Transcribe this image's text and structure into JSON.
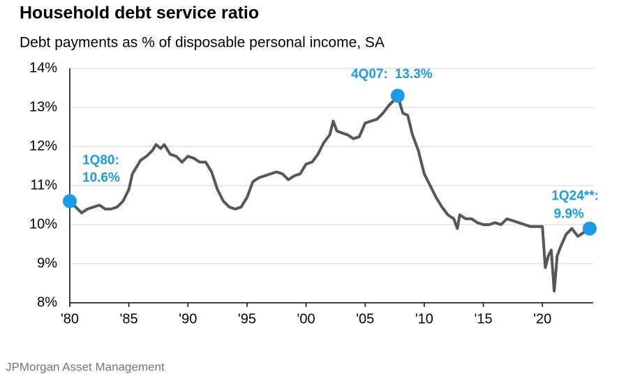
{
  "chart_data": {
    "type": "line",
    "title": "Household debt service ratio",
    "subtitle": "Debt payments as % of disposable personal income, SA",
    "source": "JPMorgan Asset Management",
    "x": [
      1980.0,
      1980.5,
      1981.0,
      1981.5,
      1982.0,
      1982.5,
      1983.0,
      1983.5,
      1984.0,
      1984.5,
      1985.0,
      1985.3,
      1985.7,
      1986.0,
      1986.5,
      1987.0,
      1987.3,
      1987.7,
      1988.0,
      1988.5,
      1989.0,
      1989.5,
      1990.0,
      1990.5,
      1991.0,
      1991.5,
      1992.0,
      1992.5,
      1993.0,
      1993.5,
      1994.0,
      1994.5,
      1995.0,
      1995.5,
      1996.0,
      1996.5,
      1997.0,
      1997.5,
      1998.0,
      1998.5,
      1999.0,
      1999.5,
      2000.0,
      2000.5,
      2001.0,
      2001.5,
      2002.0,
      2002.3,
      2002.6,
      2003.0,
      2003.5,
      2004.0,
      2004.5,
      2005.0,
      2005.5,
      2006.0,
      2006.5,
      2007.0,
      2007.5,
      2007.75,
      2008.2,
      2008.6,
      2009.0,
      2009.5,
      2010.0,
      2010.5,
      2011.0,
      2011.5,
      2012.0,
      2012.5,
      2012.8,
      2013.0,
      2013.5,
      2014.0,
      2014.5,
      2015.0,
      2015.5,
      2016.0,
      2016.5,
      2017.0,
      2017.5,
      2018.0,
      2018.5,
      2019.0,
      2019.5,
      2020.0,
      2020.25,
      2020.5,
      2020.75,
      2021.0,
      2021.25,
      2021.5,
      2022.0,
      2022.5,
      2023.0,
      2023.5,
      2024.0
    ],
    "series": [
      {
        "name": "Debt service ratio",
        "color": "#555759",
        "values": [
          10.6,
          10.45,
          10.3,
          10.4,
          10.45,
          10.5,
          10.4,
          10.4,
          10.45,
          10.6,
          10.9,
          11.3,
          11.5,
          11.65,
          11.75,
          11.9,
          12.05,
          11.95,
          12.05,
          11.8,
          11.75,
          11.6,
          11.75,
          11.7,
          11.6,
          11.6,
          11.35,
          10.9,
          10.6,
          10.45,
          10.4,
          10.45,
          10.7,
          11.1,
          11.2,
          11.25,
          11.3,
          11.35,
          11.3,
          11.15,
          11.25,
          11.3,
          11.55,
          11.6,
          11.8,
          12.1,
          12.3,
          12.65,
          12.4,
          12.35,
          12.3,
          12.2,
          12.25,
          12.6,
          12.65,
          12.7,
          12.85,
          13.05,
          13.2,
          13.3,
          12.85,
          12.8,
          12.3,
          11.9,
          11.3,
          11.0,
          10.7,
          10.45,
          10.25,
          10.15,
          9.9,
          10.25,
          10.15,
          10.15,
          10.05,
          10.0,
          10.0,
          10.05,
          10.0,
          10.15,
          10.1,
          10.05,
          10.0,
          9.95,
          9.95,
          9.95,
          8.9,
          9.2,
          9.35,
          8.3,
          9.2,
          9.4,
          9.75,
          9.9,
          9.7,
          9.8,
          9.9
        ]
      }
    ],
    "annotations": [
      {
        "label": "1Q80:",
        "x": 1980.0,
        "value": 10.6,
        "value_label": "10.6%"
      },
      {
        "label": "4Q07:",
        "x": 2007.75,
        "value": 13.3,
        "value_label": "13.3%"
      },
      {
        "label": "1Q24**:",
        "x": 2024.0,
        "value": 9.9,
        "value_label": "9.9%"
      }
    ],
    "annotation_color": "#1a9be6",
    "xlim": [
      1980,
      2024.3
    ],
    "xticks": [
      {
        "value": 1980,
        "label": "'80"
      },
      {
        "value": 1985,
        "label": "'85"
      },
      {
        "value": 1990,
        "label": "'90"
      },
      {
        "value": 1995,
        "label": "'95"
      },
      {
        "value": 2000,
        "label": "'00"
      },
      {
        "value": 2005,
        "label": "'05"
      },
      {
        "value": 2010,
        "label": "'10"
      },
      {
        "value": 2015,
        "label": "'15"
      },
      {
        "value": 2020,
        "label": "'20"
      }
    ],
    "ylim": [
      8,
      14
    ],
    "yticks": [
      {
        "value": 8,
        "label": "8%"
      },
      {
        "value": 9,
        "label": "9%"
      },
      {
        "value": 10,
        "label": "10%"
      },
      {
        "value": 11,
        "label": "11%"
      },
      {
        "value": 12,
        "label": "12%"
      },
      {
        "value": 13,
        "label": "13%"
      },
      {
        "value": 14,
        "label": "14%"
      }
    ],
    "grid": true
  }
}
